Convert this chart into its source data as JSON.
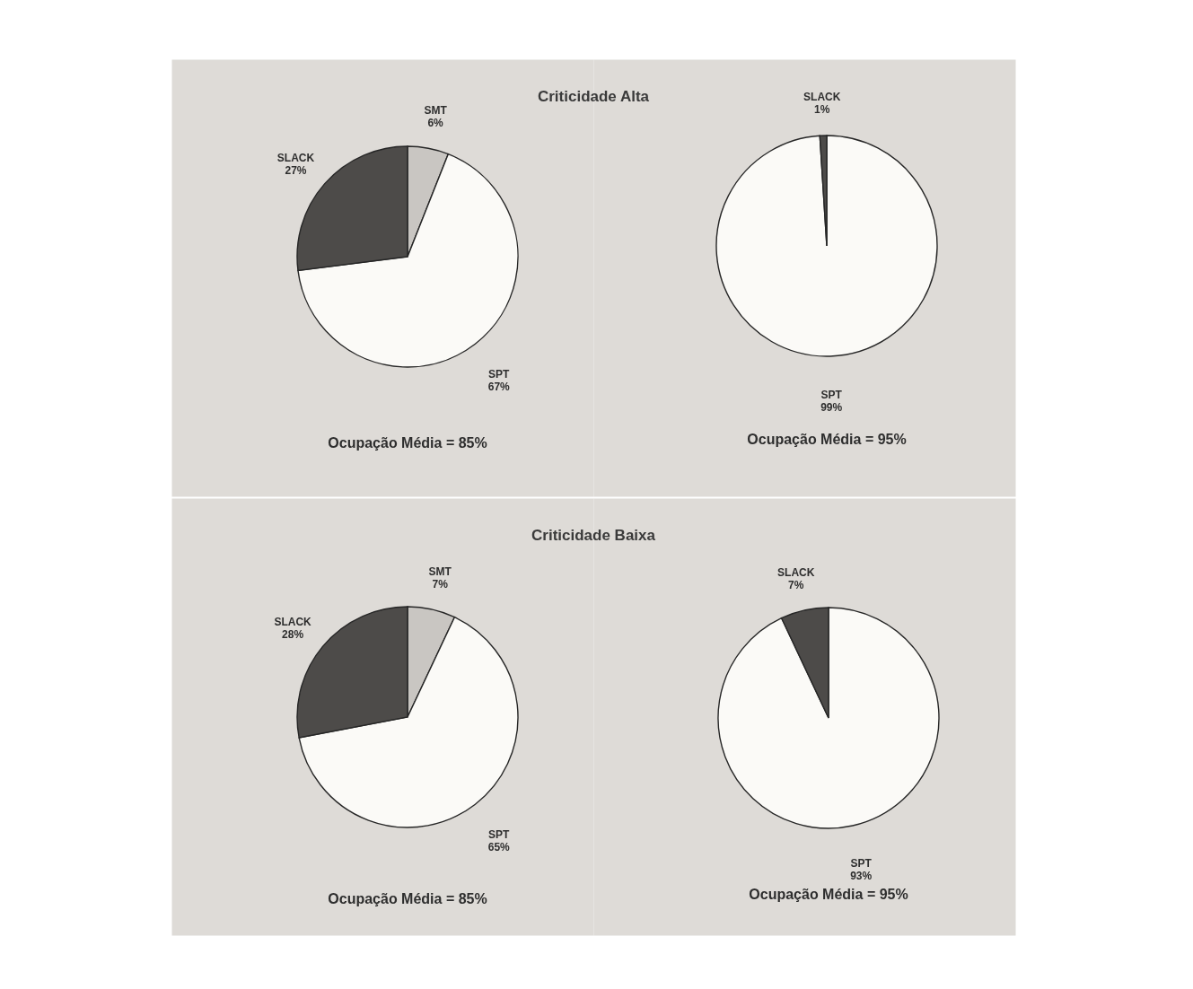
{
  "chart_data": [
    {
      "type": "pie",
      "title": "Criticidade Alta",
      "categories": [
        "SMT",
        "SPT",
        "SLACK"
      ],
      "values": [
        6,
        67,
        27
      ],
      "value_labels": [
        "6%",
        "67%",
        "27%"
      ],
      "colors": [
        "#c9c6c2",
        "#fbfaf7",
        "#4d4b49"
      ],
      "annotations": [
        "Ocupação Média = 85%"
      ]
    },
    {
      "type": "pie",
      "categories": [
        "SPT",
        "SLACK"
      ],
      "values": [
        99,
        1
      ],
      "value_labels": [
        "99%",
        "1%"
      ],
      "colors": [
        "#fbfaf7",
        "#4d4b49"
      ],
      "annotations": [
        "Ocupação Média = 95%"
      ]
    },
    {
      "type": "pie",
      "title": "Criticidade Baixa",
      "categories": [
        "SMT",
        "SPT",
        "SLACK"
      ],
      "values": [
        7,
        65,
        28
      ],
      "value_labels": [
        "7%",
        "65%",
        "28%"
      ],
      "colors": [
        "#c9c6c2",
        "#fbfaf7",
        "#4d4b49"
      ],
      "annotations": [
        "Ocupação Média = 85%"
      ]
    },
    {
      "type": "pie",
      "categories": [
        "SPT",
        "SLACK"
      ],
      "values": [
        93,
        7
      ],
      "value_labels": [
        "93%",
        "7%"
      ],
      "colors": [
        "#fbfaf7",
        "#4d4b49"
      ],
      "annotations": [
        "Ocupação Média = 95%"
      ]
    }
  ]
}
